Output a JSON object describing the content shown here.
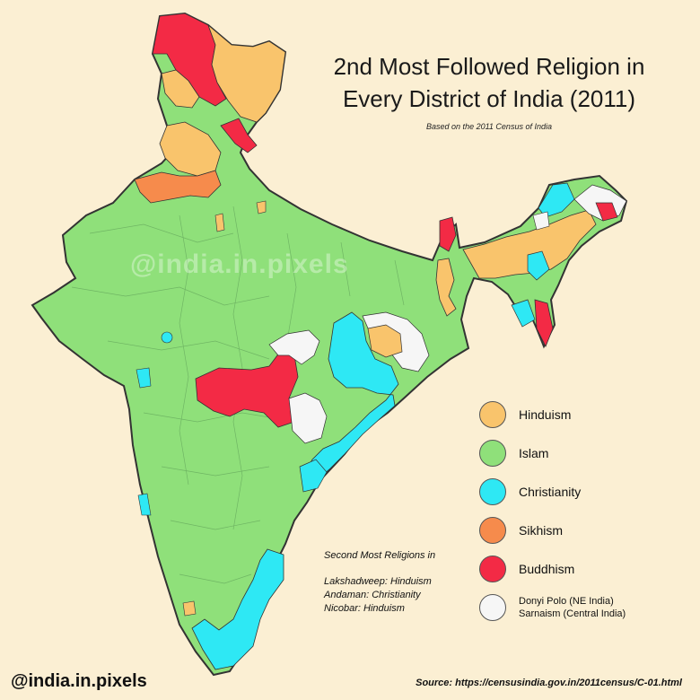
{
  "title_line1": "2nd Most Followed Religion in",
  "title_line2": "Every District of India (2011)",
  "subtitle": "Based on the 2011 Census of India",
  "watermark": "@india.in.pixels",
  "colors": {
    "background": "#FBEFD3",
    "hinduism": "#F9C46C",
    "islam": "#8FE07A",
    "christianity": "#2EE8F4",
    "sikhism": "#F68B4C",
    "buddhism": "#F32A45",
    "folk": "#F6F6F6",
    "border": "#333333"
  },
  "legend": [
    {
      "label": "Hinduism",
      "color": "#F9C46C"
    },
    {
      "label": "Islam",
      "color": "#8FE07A"
    },
    {
      "label": "Christianity",
      "color": "#2EE8F4"
    },
    {
      "label": "Sikhism",
      "color": "#F68B4C"
    },
    {
      "label": "Buddhism",
      "color": "#F32A45"
    },
    {
      "label": "Donyi Polo (NE India)",
      "label2": "Sarnaism (Central India)",
      "color": "#F6F6F6"
    }
  ],
  "islands": {
    "heading": "Second Most Religions in",
    "items": [
      "Lakshadweep: Hinduism",
      "Andaman: Christianity",
      "Nicobar: Hinduism"
    ]
  },
  "handle": "@india.in.pixels",
  "source": "Source: https://censusindia.gov.in/2011census/C-01.html"
}
